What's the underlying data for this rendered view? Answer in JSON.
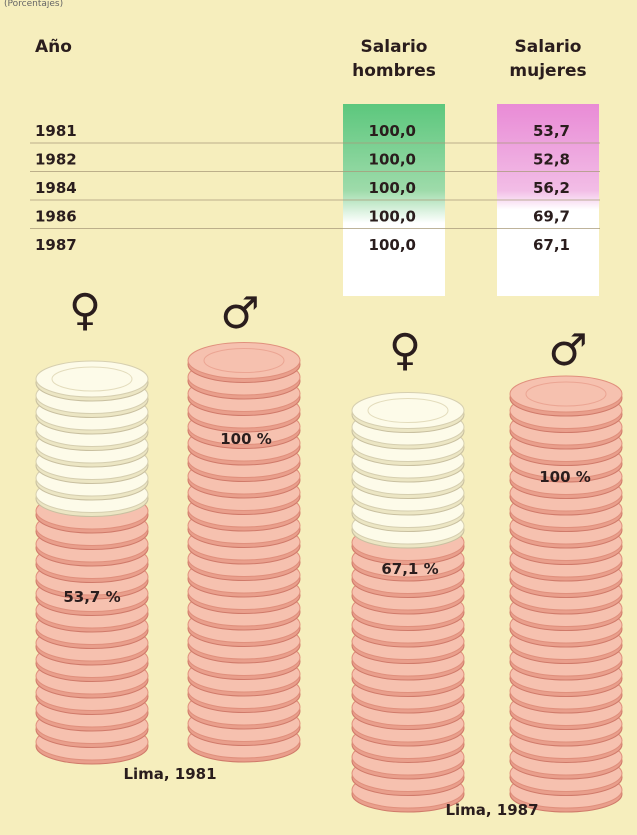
{
  "header": {
    "caption": "(Porcentajes)"
  },
  "table": {
    "columns": [
      [
        "Año"
      ],
      [
        "Salario",
        "hombres"
      ],
      [
        "Salario",
        "mujeres"
      ]
    ],
    "rows": [
      [
        "1981",
        "100,0",
        "53,7"
      ],
      [
        "1982",
        "100,0",
        "52,8"
      ],
      [
        "1984",
        "100,0",
        "56,2"
      ],
      [
        "1986",
        "100,0",
        "69,7"
      ],
      [
        "1987",
        "100,0",
        "67,1"
      ]
    ]
  },
  "stacks": [
    {
      "symbol": "♀",
      "label": "53,7 %"
    },
    {
      "symbol": "♂",
      "label": "100 %"
    },
    {
      "symbol": "♀",
      "label": "67,1 %"
    },
    {
      "symbol": "♂",
      "label": "100 %"
    }
  ],
  "captions": [
    "Lima, 1981",
    "Lima, 1987"
  ]
}
